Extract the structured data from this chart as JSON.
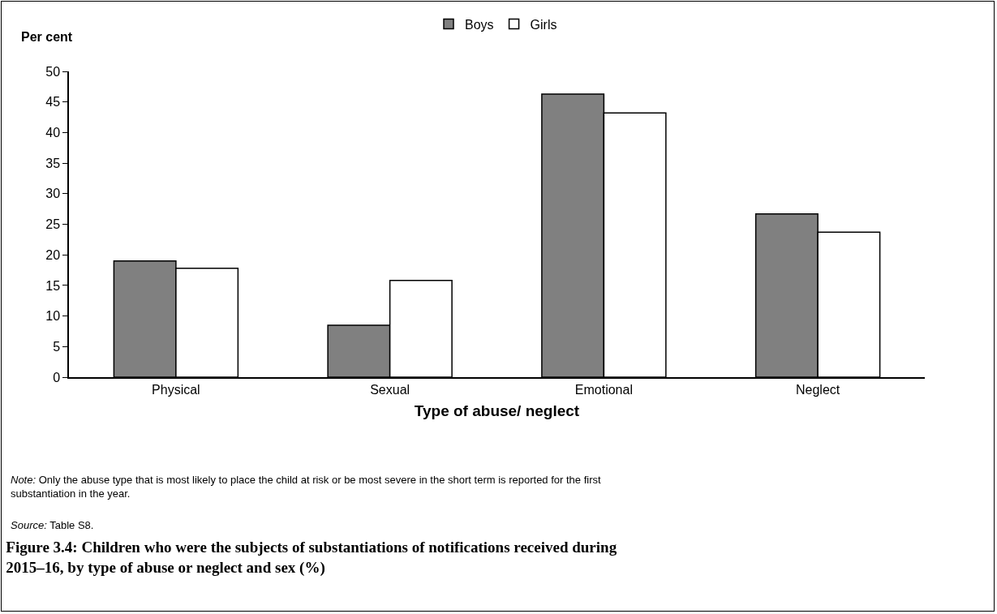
{
  "chart_data": {
    "type": "bar",
    "title": "Figure 3.4: Children who were the subjects of substantiations of notifications received during 2015–16, by type of abuse or neglect and sex (%)",
    "xlabel": "Type of abuse/ neglect",
    "ylabel": "Per cent",
    "categories": [
      "Physical",
      "Sexual",
      "Emotional",
      "Neglect"
    ],
    "series": [
      {
        "name": "Boys",
        "color": "#808080",
        "values": [
          19.0,
          8.5,
          46.3,
          26.7
        ]
      },
      {
        "name": "Girls",
        "color": "#ffffff",
        "values": [
          17.8,
          15.8,
          43.2,
          23.7
        ]
      }
    ],
    "ylim": [
      0,
      50
    ],
    "yticks": [
      0,
      5,
      10,
      15,
      20,
      25,
      30,
      35,
      40,
      45,
      50
    ],
    "grid": false,
    "legend": "top",
    "annotations": [
      "Note: Only the abuse type that is most likely to place the child at risk or be most severe in the short term is reported for the first substantiation in the year.",
      "Source: Table S8."
    ]
  }
}
